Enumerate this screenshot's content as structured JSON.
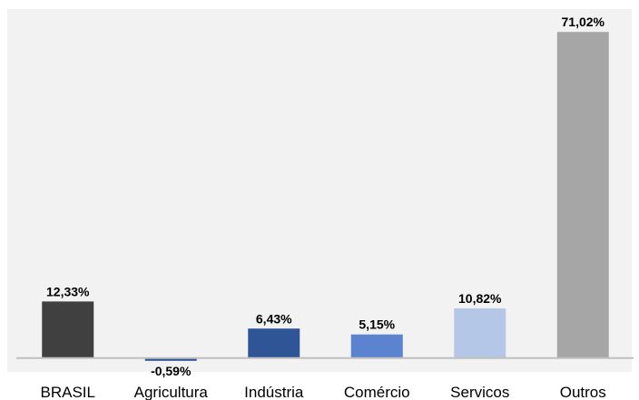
{
  "chart_data": {
    "type": "bar",
    "title": "",
    "xlabel": "",
    "ylabel": "",
    "categories": [
      "BRASIL",
      "Agricultura",
      "Indústria",
      "Comércio",
      "Servicos",
      "Outros"
    ],
    "values": [
      12.33,
      -0.59,
      6.43,
      5.15,
      10.82,
      71.02
    ],
    "data_labels": [
      "12,33%",
      "-0,59%",
      "6,43%",
      "5,15%",
      "10,82%",
      "71,02%"
    ],
    "colors": [
      "#404040",
      "#2f5597",
      "#2f5597",
      "#5b83cf",
      "#b4c7e7",
      "#a6a6a6"
    ],
    "ylim": [
      -3,
      76
    ],
    "grid": false,
    "legend": "none"
  }
}
